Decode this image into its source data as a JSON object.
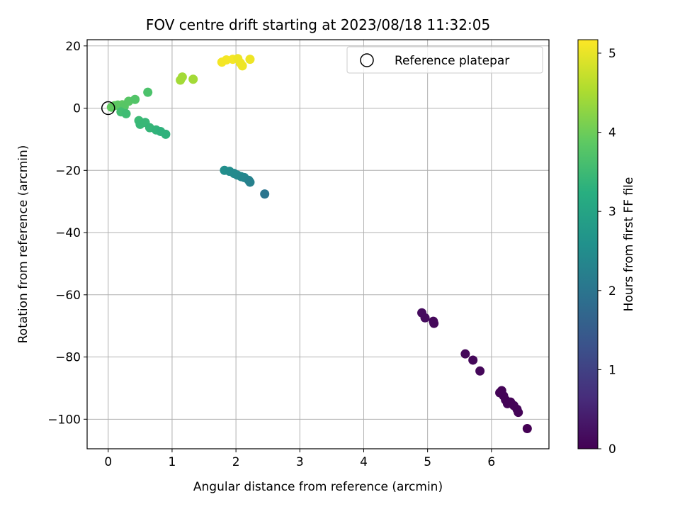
{
  "chart_data": {
    "type": "scatter",
    "title": "FOV centre drift starting at 2023/08/18 11:32:05",
    "xlabel": "Angular distance from reference (arcmin)",
    "ylabel": "Rotation from reference (arcmin)",
    "xlim": [
      -0.33,
      6.9
    ],
    "ylim": [
      -109.5,
      22.0
    ],
    "xticks": [
      0,
      1,
      2,
      3,
      4,
      5,
      6
    ],
    "yticks": [
      20,
      0,
      -20,
      -40,
      -60,
      -80,
      -100
    ],
    "grid": true,
    "legend": {
      "placement": "top-right",
      "entries": [
        "Reference platepar"
      ]
    },
    "reference_point": {
      "x": 0.0,
      "y": 0.0,
      "label": "Reference platepar"
    },
    "colorbar": {
      "label": "Hours from first FF file",
      "colormap": "viridis",
      "range": [
        0,
        5.17
      ],
      "ticks": [
        0,
        1,
        2,
        3,
        4,
        5
      ]
    },
    "points": [
      {
        "x": 0.05,
        "y": 0.3,
        "h": 3.9
      },
      {
        "x": 0.1,
        "y": 0.8,
        "h": 3.9
      },
      {
        "x": 0.15,
        "y": 1.0,
        "h": 3.85
      },
      {
        "x": 0.22,
        "y": 1.1,
        "h": 3.85
      },
      {
        "x": 0.25,
        "y": 0.5,
        "h": 3.8
      },
      {
        "x": 0.32,
        "y": 2.2,
        "h": 3.8
      },
      {
        "x": 0.42,
        "y": 2.8,
        "h": 3.75
      },
      {
        "x": 0.62,
        "y": 5.1,
        "h": 3.7
      },
      {
        "x": 0.2,
        "y": -1.2,
        "h": 3.6
      },
      {
        "x": 0.28,
        "y": -1.8,
        "h": 3.55
      },
      {
        "x": 0.48,
        "y": -4.0,
        "h": 3.5
      },
      {
        "x": 0.5,
        "y": -5.2,
        "h": 3.45
      },
      {
        "x": 0.58,
        "y": -4.6,
        "h": 3.45
      },
      {
        "x": 0.65,
        "y": -6.3,
        "h": 3.4
      },
      {
        "x": 0.75,
        "y": -7.0,
        "h": 3.35
      },
      {
        "x": 0.82,
        "y": -7.5,
        "h": 3.3
      },
      {
        "x": 0.9,
        "y": -8.4,
        "h": 3.3
      },
      {
        "x": 1.13,
        "y": 9.0,
        "h": 4.45
      },
      {
        "x": 1.16,
        "y": 10.0,
        "h": 4.45
      },
      {
        "x": 1.33,
        "y": 9.3,
        "h": 4.45
      },
      {
        "x": 1.78,
        "y": 14.8,
        "h": 5.1
      },
      {
        "x": 1.85,
        "y": 15.5,
        "h": 5.1
      },
      {
        "x": 1.95,
        "y": 15.7,
        "h": 5.1
      },
      {
        "x": 2.03,
        "y": 15.9,
        "h": 5.05
      },
      {
        "x": 2.07,
        "y": 14.5,
        "h": 5.05
      },
      {
        "x": 2.1,
        "y": 13.6,
        "h": 5.05
      },
      {
        "x": 2.22,
        "y": 15.7,
        "h": 5.05
      },
      {
        "x": 1.82,
        "y": -20.0,
        "h": 2.55
      },
      {
        "x": 1.9,
        "y": -20.3,
        "h": 2.5
      },
      {
        "x": 1.97,
        "y": -21.0,
        "h": 2.45
      },
      {
        "x": 2.02,
        "y": -21.5,
        "h": 2.45
      },
      {
        "x": 2.08,
        "y": -22.0,
        "h": 2.4
      },
      {
        "x": 2.13,
        "y": -22.3,
        "h": 2.35
      },
      {
        "x": 2.2,
        "y": -23.2,
        "h": 2.3
      },
      {
        "x": 2.22,
        "y": -23.8,
        "h": 2.25
      },
      {
        "x": 2.45,
        "y": -27.6,
        "h": 2.0
      },
      {
        "x": 4.91,
        "y": -65.8,
        "h": 0.15
      },
      {
        "x": 4.96,
        "y": -67.4,
        "h": 0.15
      },
      {
        "x": 5.09,
        "y": -68.5,
        "h": 0.1
      },
      {
        "x": 5.1,
        "y": -69.2,
        "h": 0.1
      },
      {
        "x": 5.59,
        "y": -79.0,
        "h": 0.1
      },
      {
        "x": 5.71,
        "y": -81.0,
        "h": 0.1
      },
      {
        "x": 5.82,
        "y": -84.5,
        "h": 0.1
      },
      {
        "x": 6.13,
        "y": -91.5,
        "h": 0.05
      },
      {
        "x": 6.16,
        "y": -90.8,
        "h": 0.05
      },
      {
        "x": 6.19,
        "y": -92.5,
        "h": 0.05
      },
      {
        "x": 6.22,
        "y": -93.8,
        "h": 0.05
      },
      {
        "x": 6.25,
        "y": -95.0,
        "h": 0.05
      },
      {
        "x": 6.3,
        "y": -94.5,
        "h": 0.05
      },
      {
        "x": 6.35,
        "y": -95.6,
        "h": 0.05
      },
      {
        "x": 6.4,
        "y": -96.8,
        "h": 0.05
      },
      {
        "x": 6.42,
        "y": -97.8,
        "h": 0.05
      },
      {
        "x": 6.56,
        "y": -103.0,
        "h": 0.0
      }
    ]
  }
}
